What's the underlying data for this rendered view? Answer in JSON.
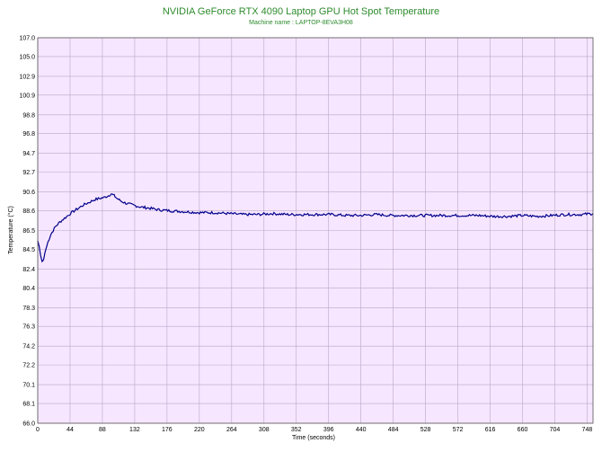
{
  "chart_data": {
    "type": "line",
    "title": "NVIDIA GeForce RTX 4090 Laptop GPU Hot Spot Temperature",
    "subtitle": "Machine name : LAPTOP-8EVA3H08",
    "xlabel": "Time (seconds)",
    "ylabel": "Temperature (°C)",
    "xlim": [
      0,
      756
    ],
    "ylim": [
      66.0,
      107.0
    ],
    "xticks": [
      0,
      44,
      88,
      132,
      176,
      220,
      264,
      308,
      352,
      396,
      440,
      484,
      528,
      572,
      616,
      660,
      704,
      748
    ],
    "yticks": [
      "107.0",
      "105.0",
      "102.9",
      "100.9",
      "98.8",
      "96.8",
      "94.7",
      "92.7",
      "90.6",
      "88.6",
      "86.5",
      "84.5",
      "82.4",
      "80.4",
      "78.3",
      "76.3",
      "74.2",
      "72.2",
      "70.1",
      "68.1",
      "66.0"
    ],
    "grid": true,
    "series": [
      {
        "values": [
          [
            0,
            85.4
          ],
          [
            2,
            84.8
          ],
          [
            4,
            83.8
          ],
          [
            6,
            83.2
          ],
          [
            8,
            83.4
          ],
          [
            10,
            84.2
          ],
          [
            14,
            85.3
          ],
          [
            18,
            86.1
          ],
          [
            24,
            86.9
          ],
          [
            30,
            87.4
          ],
          [
            38,
            87.9
          ],
          [
            46,
            88.4
          ],
          [
            54,
            88.8
          ],
          [
            62,
            89.2
          ],
          [
            70,
            89.5
          ],
          [
            78,
            89.8
          ],
          [
            84,
            89.9
          ],
          [
            90,
            90.0
          ],
          [
            96,
            90.2
          ],
          [
            100,
            90.4
          ],
          [
            104,
            90.2
          ],
          [
            108,
            89.9
          ],
          [
            114,
            89.6
          ],
          [
            120,
            89.4
          ],
          [
            130,
            89.2
          ],
          [
            140,
            89.0
          ],
          [
            150,
            88.9
          ],
          [
            165,
            88.7
          ],
          [
            180,
            88.6
          ],
          [
            200,
            88.5
          ],
          [
            220,
            88.4
          ],
          [
            240,
            88.4
          ],
          [
            260,
            88.3
          ],
          [
            280,
            88.2
          ],
          [
            300,
            88.2
          ],
          [
            320,
            88.3
          ],
          [
            340,
            88.2
          ],
          [
            360,
            88.2
          ],
          [
            380,
            88.2
          ],
          [
            400,
            88.2
          ],
          [
            420,
            88.1
          ],
          [
            440,
            88.1
          ],
          [
            460,
            88.2
          ],
          [
            480,
            88.1
          ],
          [
            500,
            88.1
          ],
          [
            520,
            88.1
          ],
          [
            540,
            88.1
          ],
          [
            560,
            88.1
          ],
          [
            580,
            88.1
          ],
          [
            600,
            88.1
          ],
          [
            620,
            88.0
          ],
          [
            640,
            88.0
          ],
          [
            660,
            88.1
          ],
          [
            680,
            88.0
          ],
          [
            700,
            88.1
          ],
          [
            720,
            88.2
          ],
          [
            740,
            88.2
          ],
          [
            756,
            88.3
          ]
        ],
        "color": "#00008b"
      }
    ],
    "colors": {
      "plot_background": "#f7e6ff",
      "grid": "#b8a8c8",
      "title": "#2e8b2e",
      "line": "#00008b"
    }
  }
}
